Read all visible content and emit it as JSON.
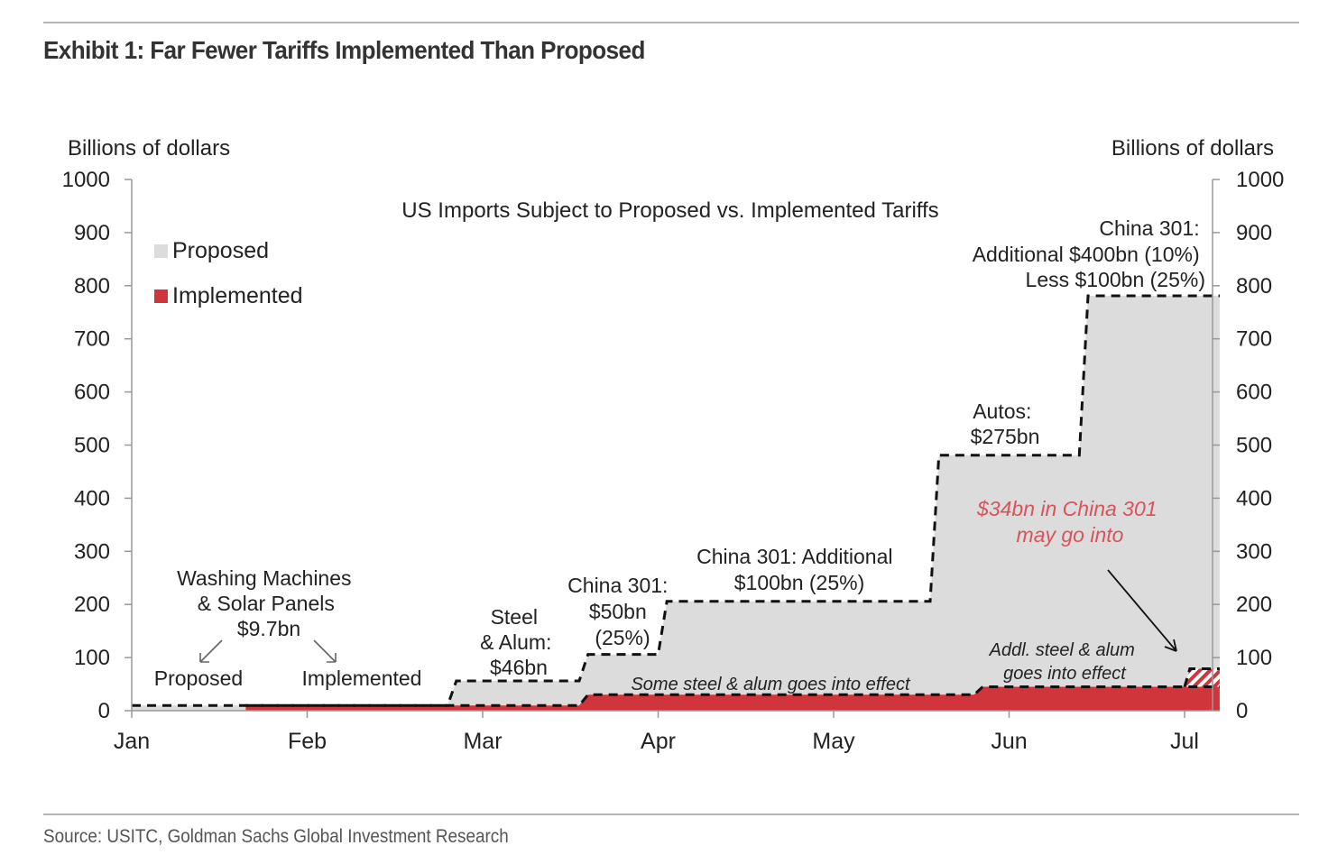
{
  "exhibit_title": "Exhibit 1: Far Fewer Tariffs Implemented Than Proposed",
  "source": "Source: USITC, Goldman Sachs Global Investment Research",
  "colors": {
    "proposed_fill": "#dcdcdc",
    "implemented_fill": "#d0353c",
    "dashed_line": "#111111",
    "annotation_red": "#d9535a",
    "axis": "#888888",
    "text": "#222222"
  },
  "chart_data": {
    "type": "area",
    "title": "US Imports Subject to Proposed vs. Implemented Tariffs",
    "ylabel_left": "Billions of dollars",
    "ylabel_right": "Billions of dollars",
    "ylim": [
      0,
      1000
    ],
    "yticks": [
      0,
      100,
      200,
      300,
      400,
      500,
      600,
      700,
      800,
      900,
      1000
    ],
    "xlim": [
      0,
      6.2
    ],
    "x_ticks": [
      {
        "x": 0,
        "label": "Jan"
      },
      {
        "x": 1,
        "label": "Feb"
      },
      {
        "x": 2,
        "label": "Mar"
      },
      {
        "x": 3,
        "label": "Apr"
      },
      {
        "x": 4,
        "label": "May"
      },
      {
        "x": 5,
        "label": "Jun"
      },
      {
        "x": 6,
        "label": "Jul"
      }
    ],
    "legend": [
      {
        "name": "Proposed",
        "color": "#dcdcdc"
      },
      {
        "name": "Implemented",
        "color": "#d0353c"
      }
    ],
    "legend_position": "top-left",
    "series": [
      {
        "name": "Proposed",
        "x": [
          0,
          1.8,
          1.85,
          2.55,
          2.6,
          3.0,
          3.05,
          4.55,
          4.6,
          5.4,
          5.45,
          6.2
        ],
        "values": [
          9.7,
          9.7,
          56,
          56,
          106,
          106,
          206,
          206,
          481,
          481,
          781,
          781
        ]
      },
      {
        "name": "Implemented",
        "x": [
          0.65,
          2.55,
          2.6,
          4.8,
          4.85,
          6.2
        ],
        "values": [
          9.7,
          9.7,
          30,
          30,
          45,
          45
        ]
      }
    ],
    "pending": {
      "label": "China 301 $34bn",
      "x_start": 6.0,
      "x_end": 6.2,
      "y_start": 45,
      "y_end": 79
    },
    "annotations": [
      {
        "id": "washing",
        "lines": [
          "Washing Machines",
          "& Solar Panels",
          "$9.7bn"
        ]
      },
      {
        "id": "proposed-arrow-label",
        "text": "Proposed"
      },
      {
        "id": "implemented-arrow-label",
        "text": "Implemented"
      },
      {
        "id": "steel",
        "lines": [
          "Steel",
          "& Alum:",
          "$46bn"
        ]
      },
      {
        "id": "china50",
        "lines": [
          "China 301:",
          "$50bn",
          "(25%)"
        ]
      },
      {
        "id": "china100",
        "lines": [
          "China 301: Additional",
          "$100bn (25%)"
        ]
      },
      {
        "id": "autos",
        "lines": [
          "Autos:",
          "$275bn"
        ]
      },
      {
        "id": "china400",
        "lines": [
          "China 301:",
          "Additional $400bn (10%)",
          "Less $100bn (25%)"
        ]
      },
      {
        "id": "some-steel",
        "text": "Some steel & alum goes into effect"
      },
      {
        "id": "addl-steel",
        "lines": [
          "Addl. steel & alum",
          "goes into effect"
        ]
      },
      {
        "id": "china34",
        "lines": [
          "$34bn in China 301",
          "may go into"
        ]
      }
    ]
  }
}
